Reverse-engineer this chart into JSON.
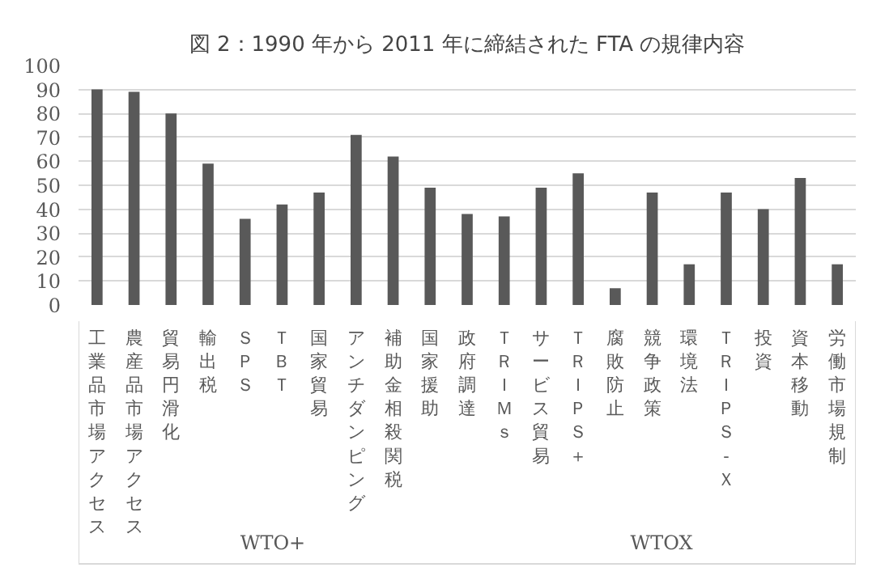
{
  "chart_data": {
    "type": "bar",
    "title": "図 2：1990 年から 2011 年に締結された FTA の規律内容",
    "categories": [
      "工業品市場アクセス",
      "農産品市場アクセス",
      "貿易円滑化",
      "輸出税",
      "ＳＰＳ",
      "ＴＢＴ",
      "国家貿易",
      "アンチダンピング",
      "補助金相殺関税",
      "国家援助",
      "政府調達",
      "ＴＲＩＭｓ",
      "サービス貿易",
      "ＴＲＩＰＳ＋",
      "腐敗防止",
      "競争政策",
      "環境法",
      "ＴＲＩＰＳ-Ｘ",
      "投資",
      "資本移動",
      "労働市場規制"
    ],
    "values": [
      90,
      89,
      80,
      59,
      36,
      42,
      47,
      71,
      62,
      49,
      38,
      37,
      49,
      55,
      7,
      47,
      17,
      47,
      40,
      53,
      17
    ],
    "color": "#595959",
    "ylim": [
      0,
      100
    ],
    "yticks": [
      0,
      10,
      20,
      30,
      40,
      50,
      60,
      70,
      80,
      90,
      100
    ],
    "grid": "y",
    "annotations": [
      "WTO+",
      "WTOX"
    ]
  }
}
